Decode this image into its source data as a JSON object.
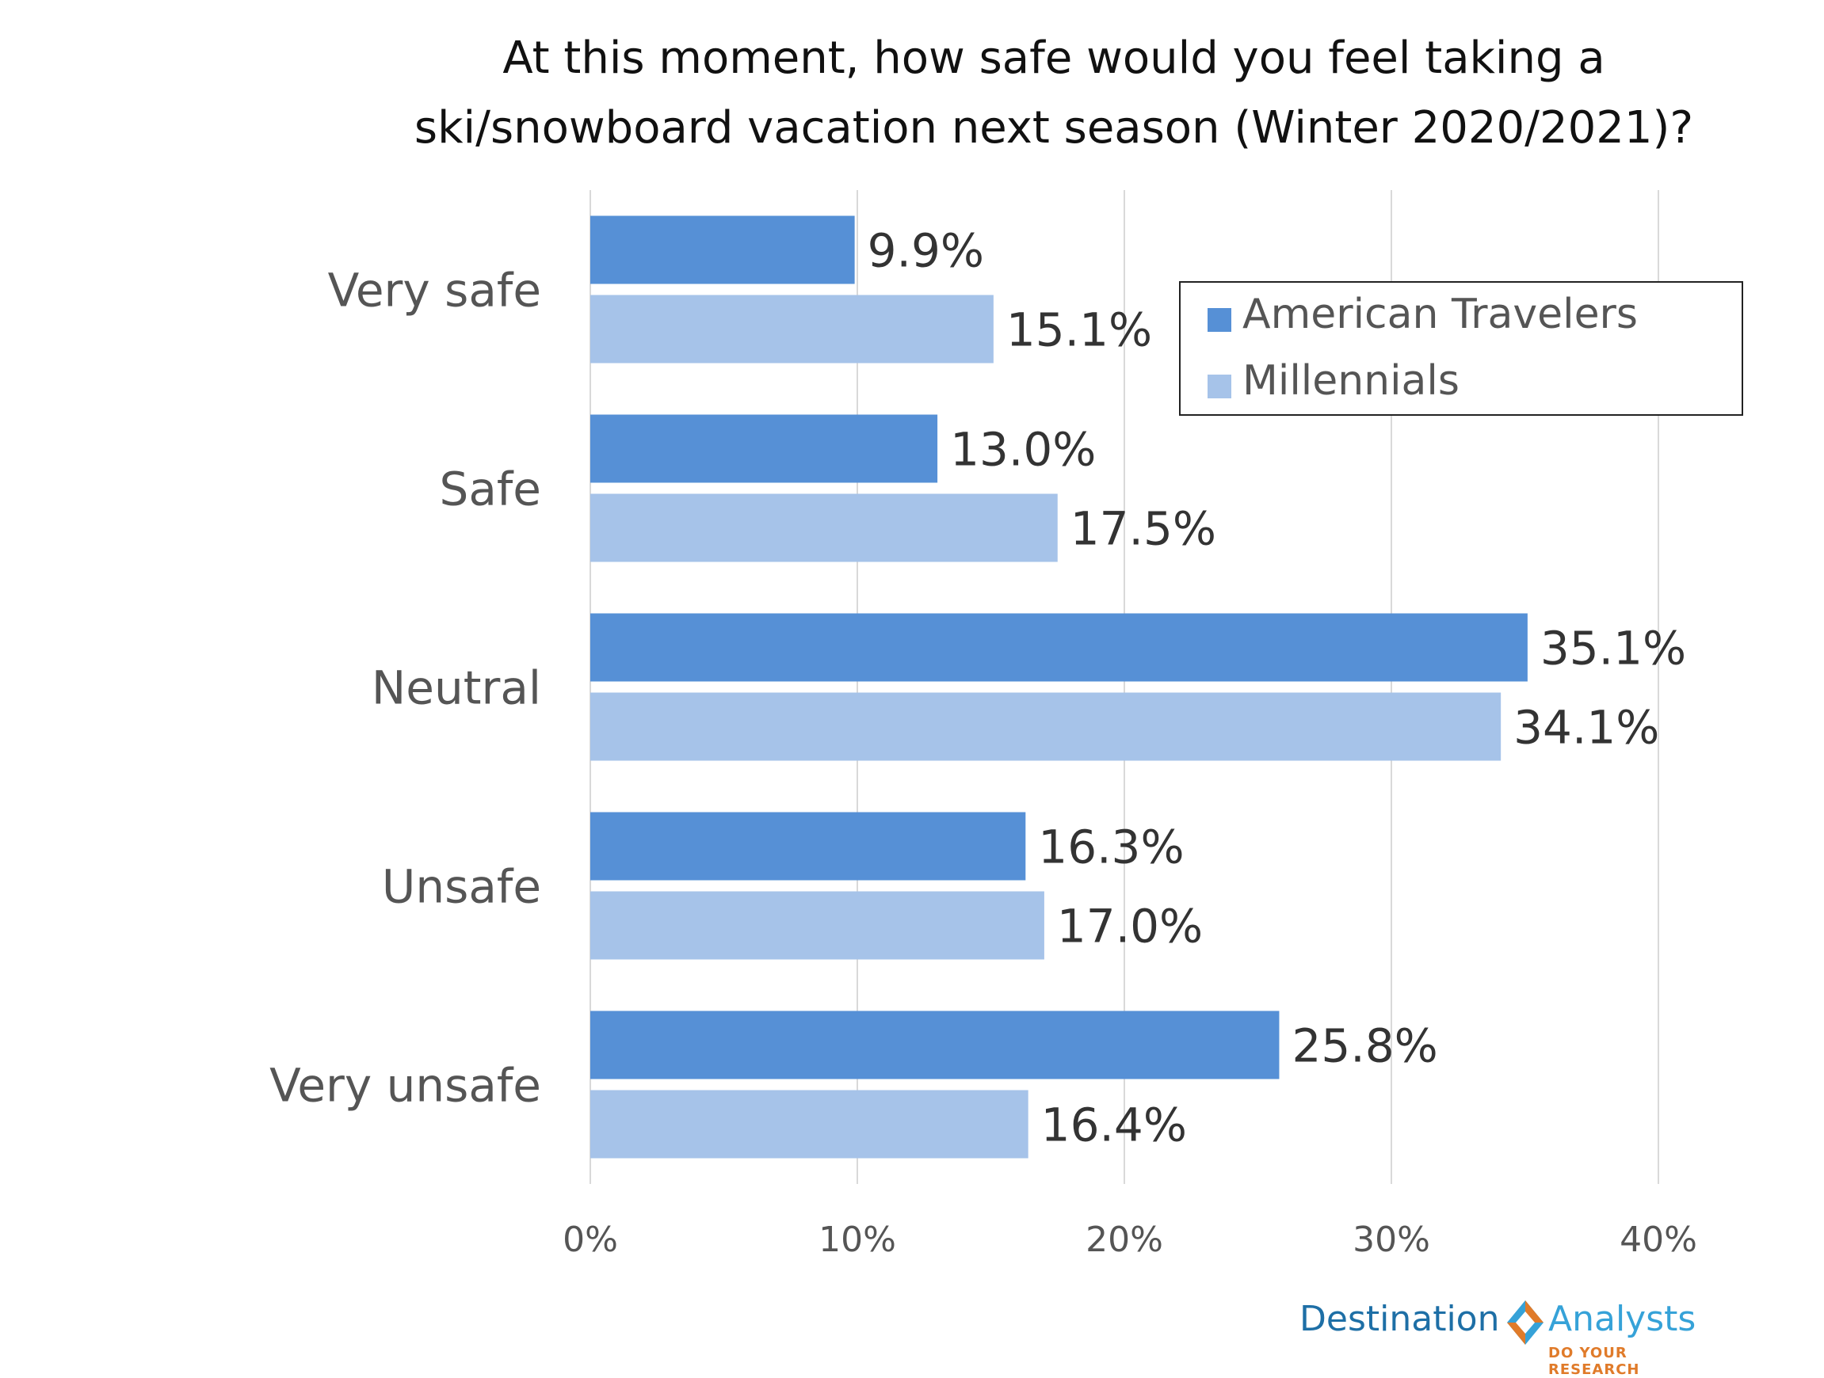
{
  "chart_data": {
    "type": "bar",
    "orientation": "horizontal",
    "title_line1": "At this moment, how safe would you feel taking a",
    "title_line2": "ski/snowboard vacation next season (Winter 2020/2021)?",
    "categories": [
      "Very safe",
      "Safe",
      "Neutral",
      "Unsafe",
      "Very unsafe"
    ],
    "series": [
      {
        "name": "American Travelers",
        "color": "#5690d6",
        "values": [
          9.9,
          13.0,
          35.1,
          16.3,
          25.8
        ],
        "labels": [
          "9.9%",
          "13.0%",
          "35.1%",
          "16.3%",
          "25.8%"
        ]
      },
      {
        "name": "Millennials",
        "color": "#a6c3e9",
        "values": [
          15.1,
          17.5,
          34.1,
          17.0,
          16.4
        ],
        "labels": [
          "15.1%",
          "17.5%",
          "34.1%",
          "17.0%",
          "16.4%"
        ]
      }
    ],
    "xlim": [
      0,
      40
    ],
    "xticks": [
      "0%",
      "10%",
      "20%",
      "30%",
      "40%"
    ],
    "grid": true,
    "legend_position": "top-right"
  },
  "logo": {
    "word1": "Destination",
    "word2": "Analysts",
    "tagline": "DO YOUR RESEARCH"
  }
}
